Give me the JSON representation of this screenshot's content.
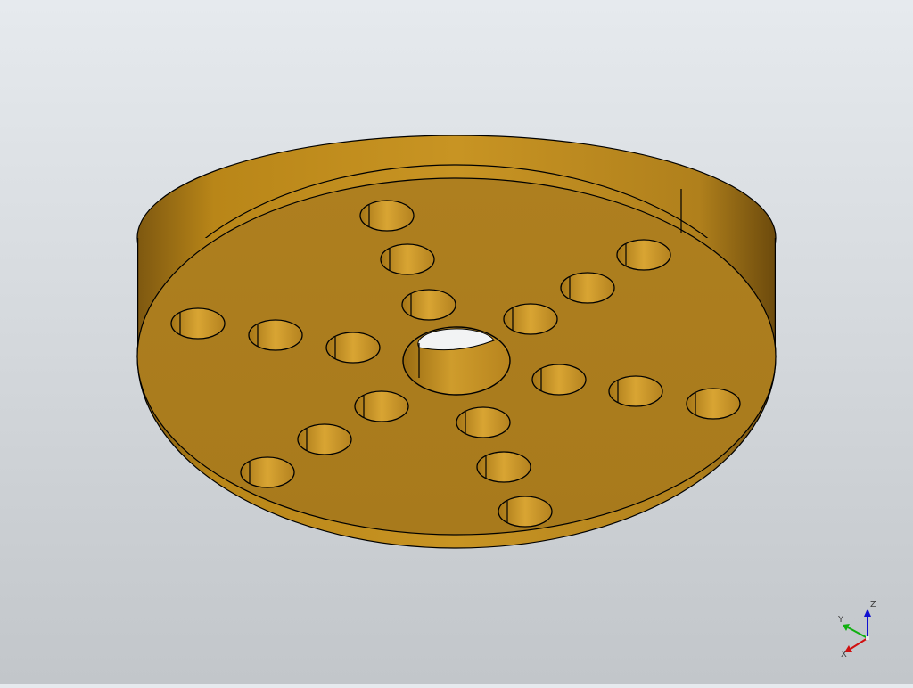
{
  "viewer": {
    "model_color": "#B0801E",
    "rim_color": "#C38E22",
    "edge_color": "#000000",
    "background_top": "#E6EAEE",
    "background_bottom": "#C2C6CA"
  },
  "axis_triad": {
    "x_label": "X",
    "y_label": "Y",
    "z_label": "Z",
    "x_color": "#D01010",
    "y_color": "#10B010",
    "z_color": "#1010D0"
  }
}
